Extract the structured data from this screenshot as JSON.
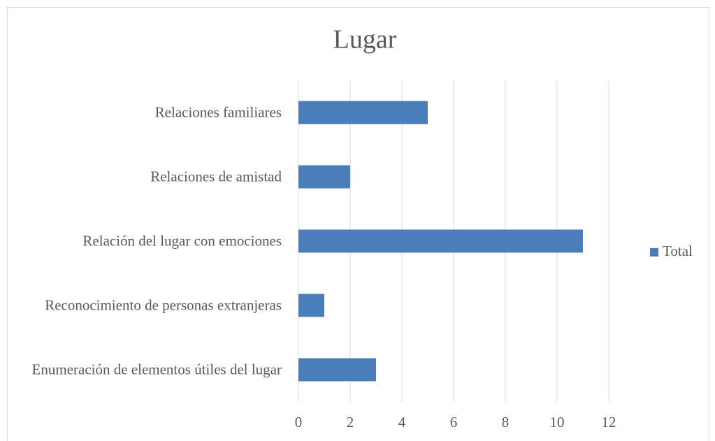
{
  "chart_data": {
    "type": "bar",
    "orientation": "horizontal",
    "title": "Lugar",
    "categories": [
      "Relaciones familiares",
      "Relaciones de amistad",
      "Relación del lugar con emociones",
      "Reconocimiento de personas extranjeras",
      "Enumeración de elementos útiles del lugar"
    ],
    "series": [
      {
        "name": "Total",
        "color": "#4a7ebb",
        "values": [
          5,
          2,
          11,
          1,
          3
        ]
      }
    ],
    "xlim": [
      0,
      12
    ],
    "xticks": [
      0,
      2,
      4,
      6,
      8,
      10,
      12
    ],
    "grid": true,
    "legend": "right"
  }
}
